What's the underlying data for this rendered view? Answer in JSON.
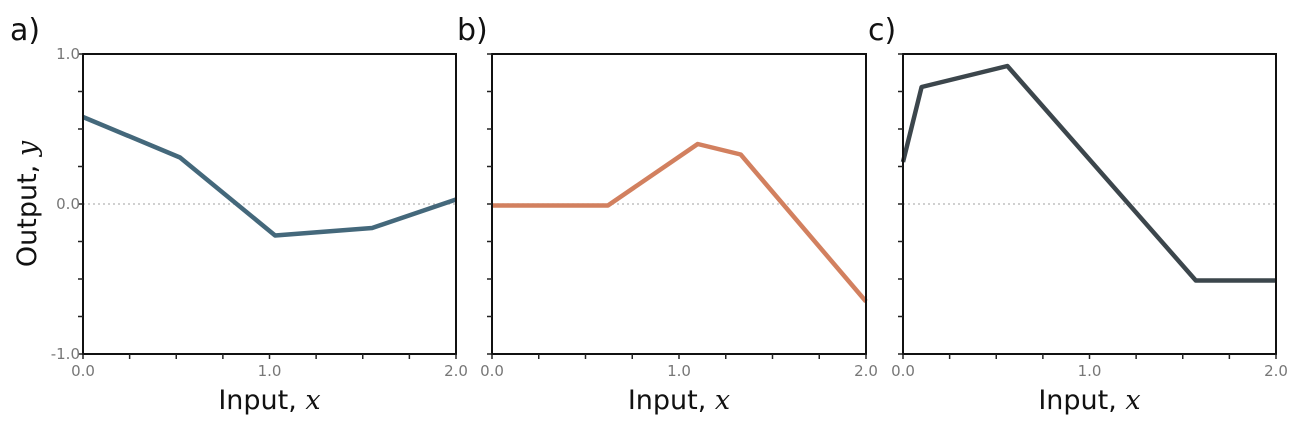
{
  "chart_data": [
    {
      "type": "line",
      "panel_label": "a)",
      "xlabel": "Input, ",
      "xlabel_var": "x",
      "ylabel": "Output, ",
      "ylabel_var": "y",
      "xlim": [
        0,
        2
      ],
      "ylim": [
        -1,
        1
      ],
      "x_tick_labels": [
        "0.0",
        "1.0",
        "2.0"
      ],
      "y_tick_labels": [
        "1.0",
        "0.0",
        "-1.0"
      ],
      "zero_line": true,
      "color": "#44687b",
      "series": [
        {
          "x": [
            0.0,
            0.52,
            1.03,
            1.55,
            2.0
          ],
          "y": [
            0.58,
            0.31,
            -0.21,
            -0.16,
            0.03
          ]
        }
      ]
    },
    {
      "type": "line",
      "panel_label": "b)",
      "xlabel": "Input, ",
      "xlabel_var": "x",
      "ylabel": "",
      "ylabel_var": "",
      "xlim": [
        0,
        2
      ],
      "ylim": [
        -1,
        1
      ],
      "x_tick_labels": [
        "0.0",
        "1.0",
        "2.0"
      ],
      "y_tick_labels": [],
      "zero_line": true,
      "color": "#d2805f",
      "series": [
        {
          "x": [
            0.0,
            0.62,
            1.1,
            1.33,
            2.0
          ],
          "y": [
            -0.01,
            -0.01,
            0.4,
            0.33,
            -0.65
          ]
        }
      ]
    },
    {
      "type": "line",
      "panel_label": "c)",
      "xlabel": "Input, ",
      "xlabel_var": "x",
      "ylabel": "",
      "ylabel_var": "",
      "xlim": [
        0,
        2
      ],
      "ylim": [
        -1,
        1
      ],
      "x_tick_labels": [
        "0.0",
        "1.0",
        "2.0"
      ],
      "y_tick_labels": [],
      "zero_line": true,
      "color": "#3c464c",
      "series": [
        {
          "x": [
            0.0,
            0.1,
            0.56,
            1.57,
            2.0
          ],
          "y": [
            0.28,
            0.78,
            0.92,
            -0.51,
            -0.51
          ]
        }
      ]
    }
  ]
}
